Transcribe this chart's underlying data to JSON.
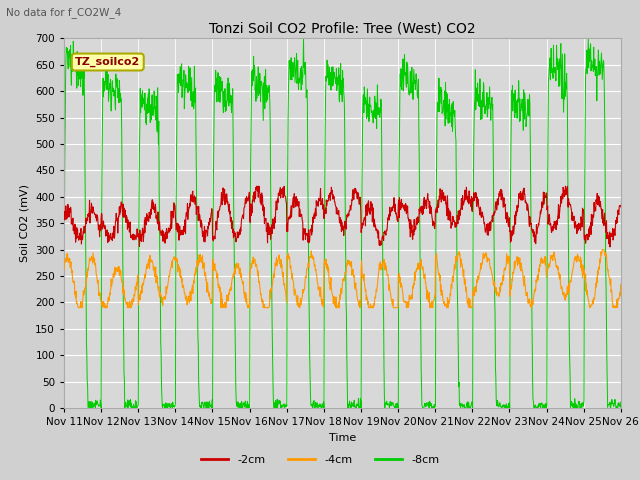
{
  "title": "Tonzi Soil CO2 Profile: Tree (West) CO2",
  "subtitle": "No data for f_CO2W_4",
  "ylabel": "Soil CO2 (mV)",
  "xlabel": "Time",
  "ylim": [
    0,
    700
  ],
  "legend_labels": [
    "-2cm",
    "-4cm",
    "-8cm"
  ],
  "colors": {
    "red": "#cc0000",
    "orange": "#ff9900",
    "green": "#00cc00"
  },
  "inset_label": "TZ_soilco2",
  "inset_label_color": "#880000",
  "inset_box_facecolor": "#ffffaa",
  "inset_box_edgecolor": "#aaaa00",
  "fig_facecolor": "#d0d0d0",
  "plot_facecolor": "#d8d8d8",
  "grid_color": "#ffffff",
  "title_fontsize": 10,
  "axis_fontsize": 8,
  "tick_fontsize": 7.5,
  "legend_fontsize": 8
}
